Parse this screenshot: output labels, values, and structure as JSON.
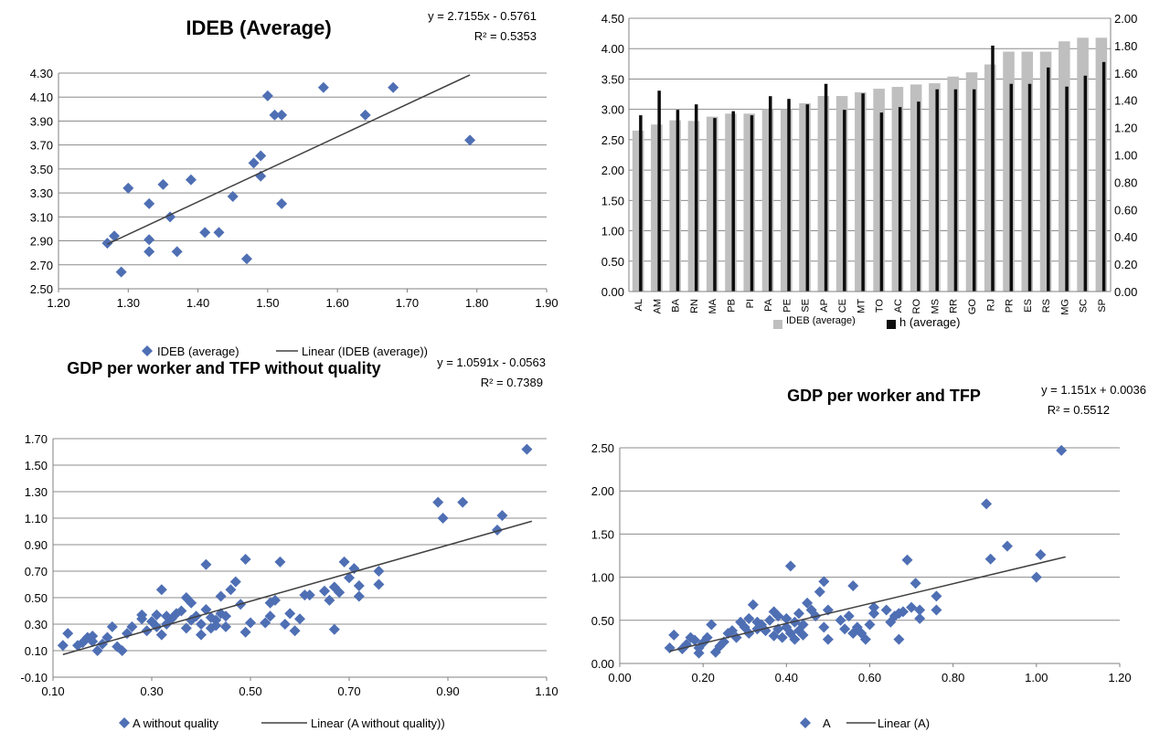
{
  "colors": {
    "marker": "#4f6fb4",
    "trendline": "#404040",
    "grid": "#8c8c8c",
    "bar_light": "#bfbfbf",
    "bar_dark": "#0d0d0d"
  },
  "chart_data": [
    {
      "type": "scatter",
      "title": "IDEB (Average)",
      "equation": "y = 2.7155x - 0.5761",
      "r2": "R² = 0.5353",
      "xlim": [
        1.2,
        1.9
      ],
      "ylim": [
        2.5,
        4.3
      ],
      "xticks": [
        "1.20",
        "1.30",
        "1.40",
        "1.50",
        "1.60",
        "1.70",
        "1.80",
        "1.90"
      ],
      "yticks": [
        "2.50",
        "2.70",
        "2.90",
        "3.10",
        "3.30",
        "3.50",
        "3.70",
        "3.90",
        "4.10",
        "4.30"
      ],
      "legend": {
        "series": "IDEB (average)",
        "trend": "Linear (IDEB (average))"
      },
      "trend": {
        "slope": 2.7155,
        "intercept": -0.5761,
        "x_range": [
          1.27,
          1.79
        ]
      },
      "points": [
        [
          1.27,
          2.88
        ],
        [
          1.28,
          2.94
        ],
        [
          1.29,
          2.64
        ],
        [
          1.3,
          3.34
        ],
        [
          1.33,
          2.91
        ],
        [
          1.33,
          2.81
        ],
        [
          1.33,
          3.21
        ],
        [
          1.35,
          3.37
        ],
        [
          1.36,
          3.1
        ],
        [
          1.37,
          2.81
        ],
        [
          1.39,
          3.41
        ],
        [
          1.41,
          2.97
        ],
        [
          1.43,
          2.97
        ],
        [
          1.45,
          3.27
        ],
        [
          1.47,
          2.75
        ],
        [
          1.48,
          3.55
        ],
        [
          1.49,
          3.61
        ],
        [
          1.49,
          3.44
        ],
        [
          1.5,
          4.11
        ],
        [
          1.51,
          3.95
        ],
        [
          1.52,
          3.95
        ],
        [
          1.52,
          3.21
        ],
        [
          1.58,
          4.18
        ],
        [
          1.64,
          3.95
        ],
        [
          1.68,
          4.18
        ],
        [
          1.79,
          3.74
        ]
      ]
    },
    {
      "type": "bar",
      "categories": [
        "AL",
        "AM",
        "BA",
        "RN",
        "MA",
        "PB",
        "PI",
        "PA",
        "PE",
        "SE",
        "AP",
        "CE",
        "MT",
        "TO",
        "AC",
        "RO",
        "MS",
        "RR",
        "GO",
        "RJ",
        "PR",
        "ES",
        "RS",
        "MG",
        "SC",
        "SP"
      ],
      "series": [
        {
          "name": "IDEB (average)",
          "axis": "left",
          "values": [
            2.65,
            2.75,
            2.82,
            2.81,
            2.88,
            2.93,
            2.93,
            3.0,
            3.0,
            3.1,
            3.22,
            3.22,
            3.28,
            3.34,
            3.37,
            3.41,
            3.43,
            3.54,
            3.61,
            3.74,
            3.95,
            3.95,
            3.95,
            4.12,
            4.18,
            4.18
          ]
        },
        {
          "name": "h (average)",
          "axis": "right",
          "values": [
            1.29,
            1.47,
            1.33,
            1.37,
            1.27,
            1.32,
            1.29,
            1.43,
            1.41,
            1.37,
            1.52,
            1.33,
            1.45,
            1.31,
            1.35,
            1.39,
            1.48,
            1.48,
            1.48,
            1.8,
            1.52,
            1.52,
            1.64,
            1.5,
            1.58,
            1.68
          ]
        }
      ],
      "ylim_left": [
        0,
        4.5
      ],
      "ylim_right": [
        0,
        2.0
      ],
      "yticks_left": [
        "0.00",
        "0.50",
        "1.00",
        "1.50",
        "2.00",
        "2.50",
        "3.00",
        "3.50",
        "4.00",
        "4.50"
      ],
      "yticks_right": [
        "0.00",
        "0.20",
        "0.40",
        "0.60",
        "0.80",
        "1.00",
        "1.20",
        "1.40",
        "1.60",
        "1.80",
        "2.00"
      ]
    },
    {
      "type": "scatter",
      "title": "GDP per worker and TFP without quality",
      "equation": "y = 1.0591x - 0.0563",
      "r2": "R² = 0.7389",
      "xlim": [
        0.1,
        1.1
      ],
      "ylim": [
        -0.1,
        1.7
      ],
      "xticks": [
        "0.10",
        "0.30",
        "0.50",
        "0.70",
        "0.90",
        "1.10"
      ],
      "yticks": [
        "-0.10",
        "0.10",
        "0.30",
        "0.50",
        "0.70",
        "0.90",
        "1.10",
        "1.30",
        "1.50",
        "1.70"
      ],
      "legend": {
        "series": "A without quality",
        "trend": "Linear (A without quality))"
      },
      "trend": {
        "slope": 1.0591,
        "intercept": -0.0563,
        "x_range": [
          0.12,
          1.07
        ]
      },
      "points": [
        [
          0.12,
          0.14
        ],
        [
          0.13,
          0.23
        ],
        [
          0.15,
          0.14
        ],
        [
          0.16,
          0.16
        ],
        [
          0.17,
          0.2
        ],
        [
          0.18,
          0.21
        ],
        [
          0.18,
          0.17
        ],
        [
          0.19,
          0.1
        ],
        [
          0.2,
          0.15
        ],
        [
          0.21,
          0.2
        ],
        [
          0.22,
          0.28
        ],
        [
          0.23,
          0.13
        ],
        [
          0.24,
          0.1
        ],
        [
          0.25,
          0.23
        ],
        [
          0.26,
          0.28
        ],
        [
          0.28,
          0.34
        ],
        [
          0.28,
          0.37
        ],
        [
          0.29,
          0.25
        ],
        [
          0.3,
          0.32
        ],
        [
          0.31,
          0.28
        ],
        [
          0.31,
          0.37
        ],
        [
          0.32,
          0.22
        ],
        [
          0.32,
          0.56
        ],
        [
          0.33,
          0.3
        ],
        [
          0.33,
          0.36
        ],
        [
          0.34,
          0.34
        ],
        [
          0.35,
          0.38
        ],
        [
          0.36,
          0.4
        ],
        [
          0.37,
          0.27
        ],
        [
          0.37,
          0.5
        ],
        [
          0.38,
          0.33
        ],
        [
          0.38,
          0.46
        ],
        [
          0.39,
          0.36
        ],
        [
          0.4,
          0.3
        ],
        [
          0.4,
          0.22
        ],
        [
          0.41,
          0.41
        ],
        [
          0.41,
          0.75
        ],
        [
          0.42,
          0.35
        ],
        [
          0.42,
          0.27
        ],
        [
          0.43,
          0.33
        ],
        [
          0.43,
          0.29
        ],
        [
          0.44,
          0.38
        ],
        [
          0.44,
          0.51
        ],
        [
          0.45,
          0.36
        ],
        [
          0.45,
          0.28
        ],
        [
          0.46,
          0.56
        ],
        [
          0.47,
          0.62
        ],
        [
          0.48,
          0.45
        ],
        [
          0.49,
          0.79
        ],
        [
          0.49,
          0.24
        ],
        [
          0.5,
          0.31
        ],
        [
          0.53,
          0.31
        ],
        [
          0.54,
          0.36
        ],
        [
          0.54,
          0.46
        ],
        [
          0.55,
          0.48
        ],
        [
          0.56,
          0.77
        ],
        [
          0.57,
          0.3
        ],
        [
          0.58,
          0.38
        ],
        [
          0.59,
          0.25
        ],
        [
          0.6,
          0.34
        ],
        [
          0.61,
          0.52
        ],
        [
          0.62,
          0.52
        ],
        [
          0.65,
          0.55
        ],
        [
          0.66,
          0.48
        ],
        [
          0.67,
          0.26
        ],
        [
          0.67,
          0.58
        ],
        [
          0.68,
          0.54
        ],
        [
          0.69,
          0.77
        ],
        [
          0.7,
          0.65
        ],
        [
          0.71,
          0.72
        ],
        [
          0.72,
          0.51
        ],
        [
          0.72,
          0.59
        ],
        [
          0.76,
          0.7
        ],
        [
          0.76,
          0.6
        ],
        [
          0.88,
          1.22
        ],
        [
          0.89,
          1.1
        ],
        [
          0.93,
          1.22
        ],
        [
          1.0,
          1.01
        ],
        [
          1.01,
          1.12
        ],
        [
          1.06,
          1.62
        ]
      ]
    },
    {
      "type": "scatter",
      "title": "GDP per worker and TFP",
      "equation": "y = 1.151x + 0.0036",
      "r2": "R² = 0.5512",
      "xlim": [
        0.0,
        1.2
      ],
      "ylim": [
        0.0,
        2.5
      ],
      "xticks": [
        "0.00",
        "0.20",
        "0.40",
        "0.60",
        "0.80",
        "1.00",
        "1.20"
      ],
      "yticks": [
        "0.00",
        "0.50",
        "1.00",
        "1.50",
        "2.00",
        "2.50"
      ],
      "legend": {
        "series": "A",
        "trend": "Linear (A)"
      },
      "trend": {
        "slope": 1.151,
        "intercept": 0.0036,
        "x_range": [
          0.12,
          1.07
        ]
      },
      "points": [
        [
          0.12,
          0.18
        ],
        [
          0.13,
          0.33
        ],
        [
          0.15,
          0.17
        ],
        [
          0.16,
          0.22
        ],
        [
          0.17,
          0.3
        ],
        [
          0.18,
          0.27
        ],
        [
          0.19,
          0.12
        ],
        [
          0.19,
          0.18
        ],
        [
          0.2,
          0.24
        ],
        [
          0.21,
          0.3
        ],
        [
          0.22,
          0.45
        ],
        [
          0.23,
          0.13
        ],
        [
          0.24,
          0.2
        ],
        [
          0.25,
          0.25
        ],
        [
          0.26,
          0.35
        ],
        [
          0.27,
          0.38
        ],
        [
          0.28,
          0.3
        ],
        [
          0.29,
          0.48
        ],
        [
          0.3,
          0.42
        ],
        [
          0.31,
          0.35
        ],
        [
          0.31,
          0.52
        ],
        [
          0.32,
          0.68
        ],
        [
          0.33,
          0.4
        ],
        [
          0.33,
          0.48
        ],
        [
          0.34,
          0.45
        ],
        [
          0.35,
          0.38
        ],
        [
          0.36,
          0.5
        ],
        [
          0.37,
          0.32
        ],
        [
          0.37,
          0.6
        ],
        [
          0.38,
          0.4
        ],
        [
          0.38,
          0.55
        ],
        [
          0.39,
          0.3
        ],
        [
          0.4,
          0.42
        ],
        [
          0.4,
          0.52
        ],
        [
          0.41,
          1.13
        ],
        [
          0.41,
          0.35
        ],
        [
          0.42,
          0.48
        ],
        [
          0.42,
          0.28
        ],
        [
          0.43,
          0.38
        ],
        [
          0.43,
          0.58
        ],
        [
          0.44,
          0.45
        ],
        [
          0.44,
          0.33
        ],
        [
          0.45,
          0.7
        ],
        [
          0.46,
          0.62
        ],
        [
          0.47,
          0.55
        ],
        [
          0.48,
          0.83
        ],
        [
          0.49,
          0.42
        ],
        [
          0.49,
          0.95
        ],
        [
          0.5,
          0.28
        ],
        [
          0.5,
          0.62
        ],
        [
          0.53,
          0.5
        ],
        [
          0.54,
          0.4
        ],
        [
          0.55,
          0.55
        ],
        [
          0.56,
          0.9
        ],
        [
          0.56,
          0.35
        ],
        [
          0.57,
          0.42
        ],
        [
          0.58,
          0.35
        ],
        [
          0.59,
          0.28
        ],
        [
          0.6,
          0.45
        ],
        [
          0.61,
          0.58
        ],
        [
          0.61,
          0.65
        ],
        [
          0.64,
          0.62
        ],
        [
          0.65,
          0.48
        ],
        [
          0.66,
          0.55
        ],
        [
          0.67,
          0.28
        ],
        [
          0.67,
          0.58
        ],
        [
          0.68,
          0.6
        ],
        [
          0.69,
          1.2
        ],
        [
          0.7,
          0.65
        ],
        [
          0.71,
          0.93
        ],
        [
          0.72,
          0.52
        ],
        [
          0.72,
          0.62
        ],
        [
          0.76,
          0.78
        ],
        [
          0.76,
          0.62
        ],
        [
          0.88,
          1.85
        ],
        [
          0.89,
          1.21
        ],
        [
          0.93,
          1.36
        ],
        [
          1.0,
          1.0
        ],
        [
          1.01,
          1.26
        ],
        [
          1.06,
          2.47
        ]
      ]
    }
  ]
}
